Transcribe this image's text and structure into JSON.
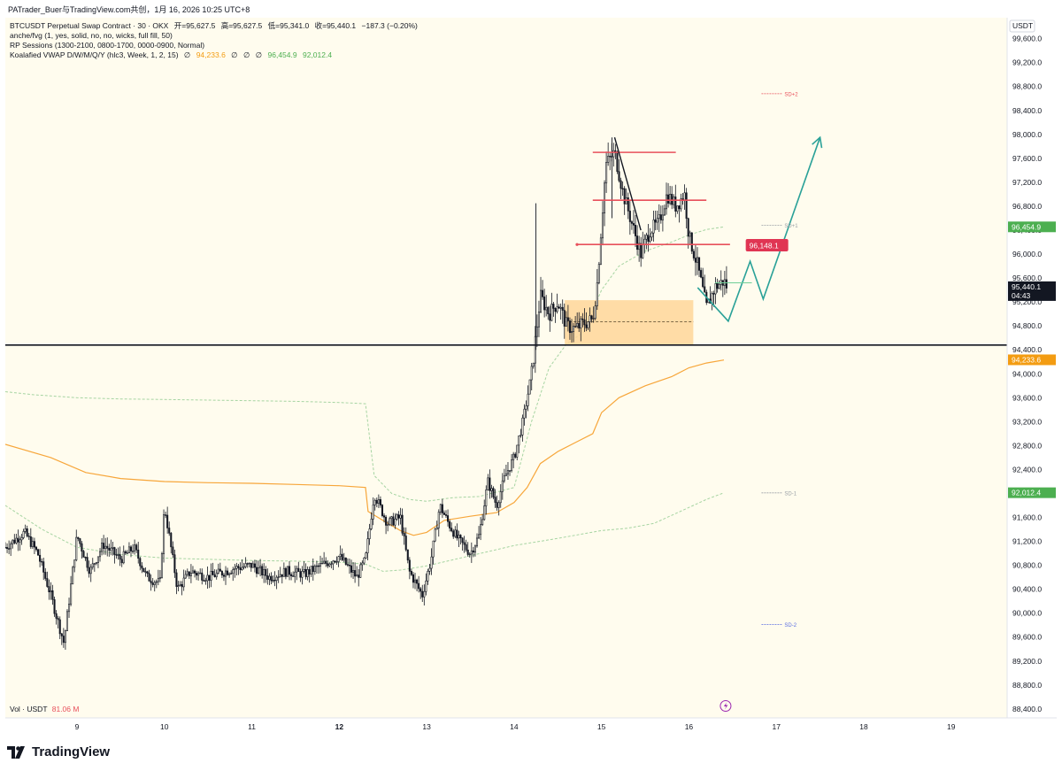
{
  "header": {
    "author_line": "PATrader_Buer与TradingView.com共创，1月 16, 2026 10:25 UTC+8"
  },
  "legend": {
    "symbol_line": {
      "title": "BTCUSDT Perpetual Swap Contract · 30 · OKX",
      "o_label": "开",
      "o": "=95,627.5",
      "h_label": "高",
      "h": "=95,627.5",
      "l_label": "低",
      "l": "=95,341.0",
      "c_label": "收",
      "c": "=95,440.1",
      "chg": "−187.3 (−0.20%)"
    },
    "ind1": "anche/fvg (1, yes, solid, no, no, wicks, full fill, 50)",
    "ind2": "RP Sessions (1300-2100, 0800-1700, 0000-0900, Normal)",
    "ind3_name": "Koalafied VWAP D/W/M/Q/Y  (hlc3, Week, 1, 2, 15)",
    "ind3_nan": "∅",
    "ind3_v1": "94,233.6",
    "ind3_v2": "96,454.9",
    "ind3_v3": "92,012.4"
  },
  "volume_label": {
    "name": "Vol · USDT",
    "value": "81.06 M"
  },
  "brand": {
    "name": "TradingView"
  },
  "colors": {
    "background": "#fffcee",
    "candle": "#131722",
    "vwap": "#f7a63a",
    "band": "#a6d4a2",
    "zone": "#ffd699",
    "red_line": "#e8505b",
    "teal_arrow": "#2aa198",
    "price_tag": "#131722",
    "vwap_tag": "#f39c12",
    "green_tag": "#4caf50",
    "red_tag": "#e03553"
  },
  "chart_data": {
    "type": "candlestick",
    "price_axis": {
      "unit": "USDT",
      "ticks": [
        "99,600.0",
        "99,200.0",
        "98,800.0",
        "98,400.0",
        "98,000.0",
        "97,600.0",
        "97,200.0",
        "96,800.0",
        "96,400.0",
        "96,000.0",
        "95,600.0",
        "95,200.0",
        "94,800.0",
        "94,400.0",
        "94,000.0",
        "93,600.0",
        "93,200.0",
        "92,800.0",
        "92,400.0",
        "92,000.0",
        "91,600.0",
        "91,200.0",
        "90,800.0",
        "90,400.0",
        "90,000.0",
        "89,600.0",
        "89,200.0",
        "88,800.0",
        "88,400.0"
      ],
      "tick_values": [
        99600,
        99200,
        98800,
        98400,
        98000,
        97600,
        97200,
        96800,
        96400,
        96000,
        95600,
        95200,
        94800,
        94400,
        94000,
        93600,
        93200,
        92800,
        92400,
        92000,
        91600,
        91200,
        90800,
        90400,
        90000,
        89600,
        89200,
        88800,
        88400
      ],
      "range": [
        88250,
        99950
      ]
    },
    "time_axis": {
      "labels": [
        "9",
        "10",
        "11",
        "12",
        "13",
        "14",
        "15",
        "16",
        "17",
        "18",
        "19"
      ],
      "bold": [
        false,
        false,
        false,
        true,
        false,
        false,
        false,
        false,
        false,
        false,
        false
      ],
      "day_index": [
        9,
        10,
        11,
        12,
        13,
        14,
        15,
        16,
        17,
        18,
        19
      ],
      "range": [
        8.18,
        19.64
      ]
    },
    "price_tags": [
      {
        "label": "95,440.1",
        "sub": "04:43",
        "value": 95440.1,
        "kind": "last"
      },
      {
        "label": "96,454.9",
        "value": 96454.9,
        "kind": "upper_band"
      },
      {
        "label": "94,233.6",
        "value": 94233.6,
        "kind": "vwap"
      },
      {
        "label": "92,012.4",
        "value": 92012.4,
        "kind": "lower_band"
      },
      {
        "label": "96,148.1",
        "value": 96148.1,
        "kind": "level"
      }
    ],
    "band_labels": [
      {
        "text": "SD+2",
        "day": 16.83,
        "value": 98680
      },
      {
        "text": "SD+1",
        "day": 16.83,
        "value": 96480
      },
      {
        "text": "SD-1",
        "day": 16.83,
        "value": 92010
      },
      {
        "text": "SD-2",
        "day": 16.83,
        "value": 89810
      }
    ],
    "horizontal_support": 94480,
    "zone": {
      "from_day": 14.58,
      "to_day": 16.05,
      "top": 95230,
      "bottom": 94480,
      "mid": 94870
    },
    "resistance_lines": [
      {
        "from_day": 14.9,
        "to_day": 15.85,
        "value": 97700
      },
      {
        "from_day": 14.9,
        "to_day": 16.2,
        "value": 96900
      },
      {
        "from_day": 14.72,
        "to_day": 16.47,
        "value": 96160
      }
    ],
    "trend_line": [
      [
        15.15,
        97950
      ],
      [
        15.45,
        96400
      ]
    ],
    "projection": [
      [
        16.1,
        95440
      ],
      [
        16.45,
        94880
      ],
      [
        16.7,
        95880
      ],
      [
        16.85,
        95250
      ],
      [
        17.5,
        97950
      ]
    ],
    "vwap": [
      [
        8.18,
        92820
      ],
      [
        8.7,
        92600
      ],
      [
        9.1,
        92350
      ],
      [
        9.5,
        92250
      ],
      [
        10.0,
        92200
      ],
      [
        10.5,
        92180
      ],
      [
        11.0,
        92170
      ],
      [
        11.5,
        92150
      ],
      [
        12.0,
        92130
      ],
      [
        12.3,
        92100
      ],
      [
        12.33,
        91700
      ],
      [
        12.5,
        91550
      ],
      [
        12.7,
        91380
      ],
      [
        12.85,
        91300
      ],
      [
        13.0,
        91350
      ],
      [
        13.2,
        91550
      ],
      [
        13.5,
        91620
      ],
      [
        13.8,
        91680
      ],
      [
        14.0,
        91850
      ],
      [
        14.15,
        92100
      ],
      [
        14.3,
        92500
      ],
      [
        14.5,
        92700
      ],
      [
        14.7,
        92850
      ],
      [
        14.9,
        93000
      ],
      [
        15.0,
        93350
      ],
      [
        15.2,
        93600
      ],
      [
        15.5,
        93800
      ],
      [
        15.8,
        93950
      ],
      [
        16.0,
        94100
      ],
      [
        16.2,
        94180
      ],
      [
        16.4,
        94230
      ]
    ],
    "upper_band": [
      [
        8.18,
        93700
      ],
      [
        8.5,
        93650
      ],
      [
        9.0,
        93600
      ],
      [
        9.5,
        93580
      ],
      [
        10.0,
        93570
      ],
      [
        10.5,
        93560
      ],
      [
        11.0,
        93550
      ],
      [
        11.5,
        93540
      ],
      [
        12.0,
        93520
      ],
      [
        12.3,
        93500
      ],
      [
        12.4,
        92300
      ],
      [
        12.6,
        92000
      ],
      [
        12.8,
        91900
      ],
      [
        13.0,
        91870
      ],
      [
        13.3,
        91930
      ],
      [
        13.6,
        91950
      ],
      [
        14.0,
        92100
      ],
      [
        14.2,
        93200
      ],
      [
        14.4,
        94100
      ],
      [
        14.6,
        94500
      ],
      [
        14.8,
        94700
      ],
      [
        15.0,
        95400
      ],
      [
        15.2,
        95800
      ],
      [
        15.5,
        96050
      ],
      [
        15.8,
        96200
      ],
      [
        16.0,
        96320
      ],
      [
        16.2,
        96410
      ],
      [
        16.4,
        96455
      ]
    ],
    "lower_band": [
      [
        8.18,
        91800
      ],
      [
        8.6,
        91400
      ],
      [
        9.0,
        91100
      ],
      [
        9.5,
        90980
      ],
      [
        10.0,
        90920
      ],
      [
        10.5,
        90900
      ],
      [
        11.0,
        90880
      ],
      [
        11.5,
        90870
      ],
      [
        12.0,
        90850
      ],
      [
        12.3,
        90820
      ],
      [
        12.5,
        90700
      ],
      [
        12.7,
        90720
      ],
      [
        13.0,
        90790
      ],
      [
        13.5,
        90960
      ],
      [
        14.0,
        91130
      ],
      [
        14.5,
        91250
      ],
      [
        15.0,
        91380
      ],
      [
        15.3,
        91420
      ],
      [
        15.6,
        91500
      ],
      [
        15.9,
        91700
      ],
      [
        16.2,
        91900
      ],
      [
        16.4,
        92012
      ]
    ],
    "ohlc_anchors": [
      [
        8.18,
        91100
      ],
      [
        8.4,
        91350
      ],
      [
        8.55,
        91000
      ],
      [
        8.7,
        90300
      ],
      [
        8.85,
        89500
      ],
      [
        9.0,
        91300
      ],
      [
        9.15,
        90700
      ],
      [
        9.3,
        91150
      ],
      [
        9.5,
        90900
      ],
      [
        9.65,
        91100
      ],
      [
        9.8,
        90600
      ],
      [
        9.95,
        90500
      ],
      [
        10.0,
        91800
      ],
      [
        10.15,
        90400
      ],
      [
        10.3,
        90700
      ],
      [
        10.5,
        90600
      ],
      [
        10.8,
        90750
      ],
      [
        11.0,
        90800
      ],
      [
        11.2,
        90600
      ],
      [
        11.4,
        90700
      ],
      [
        11.6,
        90650
      ],
      [
        11.8,
        90800
      ],
      [
        12.0,
        90950
      ],
      [
        12.2,
        90600
      ],
      [
        12.3,
        90900
      ],
      [
        12.4,
        92000
      ],
      [
        12.55,
        91500
      ],
      [
        12.7,
        91600
      ],
      [
        12.8,
        90700
      ],
      [
        12.95,
        90300
      ],
      [
        13.05,
        90900
      ],
      [
        13.15,
        91800
      ],
      [
        13.25,
        91500
      ],
      [
        13.35,
        91250
      ],
      [
        13.5,
        91000
      ],
      [
        13.6,
        91300
      ],
      [
        13.7,
        92200
      ],
      [
        13.8,
        91800
      ],
      [
        13.9,
        92300
      ],
      [
        14.0,
        92600
      ],
      [
        14.1,
        93200
      ],
      [
        14.2,
        94000
      ],
      [
        14.3,
        95300
      ],
      [
        14.4,
        95000
      ],
      [
        14.5,
        95200
      ],
      [
        14.6,
        94800
      ],
      [
        14.7,
        94750
      ],
      [
        14.8,
        94850
      ],
      [
        14.9,
        94900
      ],
      [
        14.95,
        95500
      ],
      [
        15.05,
        97500
      ],
      [
        15.15,
        97700
      ],
      [
        15.25,
        97000
      ],
      [
        15.35,
        96500
      ],
      [
        15.45,
        96000
      ],
      [
        15.55,
        96400
      ],
      [
        15.65,
        96500
      ],
      [
        15.75,
        97000
      ],
      [
        15.85,
        96800
      ],
      [
        15.95,
        97000
      ],
      [
        16.0,
        96300
      ],
      [
        16.1,
        95800
      ],
      [
        16.2,
        95100
      ],
      [
        16.3,
        95450
      ],
      [
        16.4,
        95550
      ],
      [
        16.44,
        95440
      ]
    ]
  }
}
